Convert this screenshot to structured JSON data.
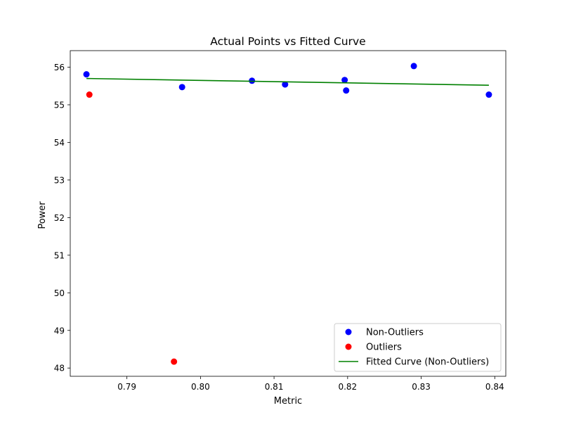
{
  "chart_data": {
    "type": "scatter",
    "title": "Actual Points vs Fitted Curve",
    "xlabel": "Metric",
    "ylabel": "Power",
    "xlim": [
      0.7823,
      0.8415
    ],
    "ylim": [
      47.78,
      56.44
    ],
    "xticks": [
      0.79,
      0.8,
      0.81,
      0.82,
      0.83,
      0.84
    ],
    "xtick_labels": [
      "0.79",
      "0.80",
      "0.81",
      "0.82",
      "0.83",
      "0.84"
    ],
    "yticks": [
      48,
      49,
      50,
      51,
      52,
      53,
      54,
      55,
      56
    ],
    "ytick_labels": [
      "48",
      "49",
      "50",
      "51",
      "52",
      "53",
      "54",
      "55",
      "56"
    ],
    "grid": false,
    "legend_position": "lower-right",
    "series": [
      {
        "name": "Non-Outliers",
        "kind": "scatter",
        "color": "#0000ff",
        "x": [
          0.7845,
          0.7975,
          0.807,
          0.8115,
          0.8196,
          0.8198,
          0.829,
          0.8392
        ],
        "y": [
          55.81,
          55.47,
          55.64,
          55.54,
          55.66,
          55.38,
          56.03,
          55.27
        ]
      },
      {
        "name": "Outliers",
        "kind": "scatter",
        "color": "#ff0000",
        "x": [
          0.7849,
          0.7964
        ],
        "y": [
          55.27,
          48.17
        ]
      },
      {
        "name": "Fitted Curve (Non-Outliers)",
        "kind": "line",
        "color": "#008000",
        "x": [
          0.7845,
          0.8392
        ],
        "y": [
          55.7,
          55.52
        ]
      }
    ]
  }
}
